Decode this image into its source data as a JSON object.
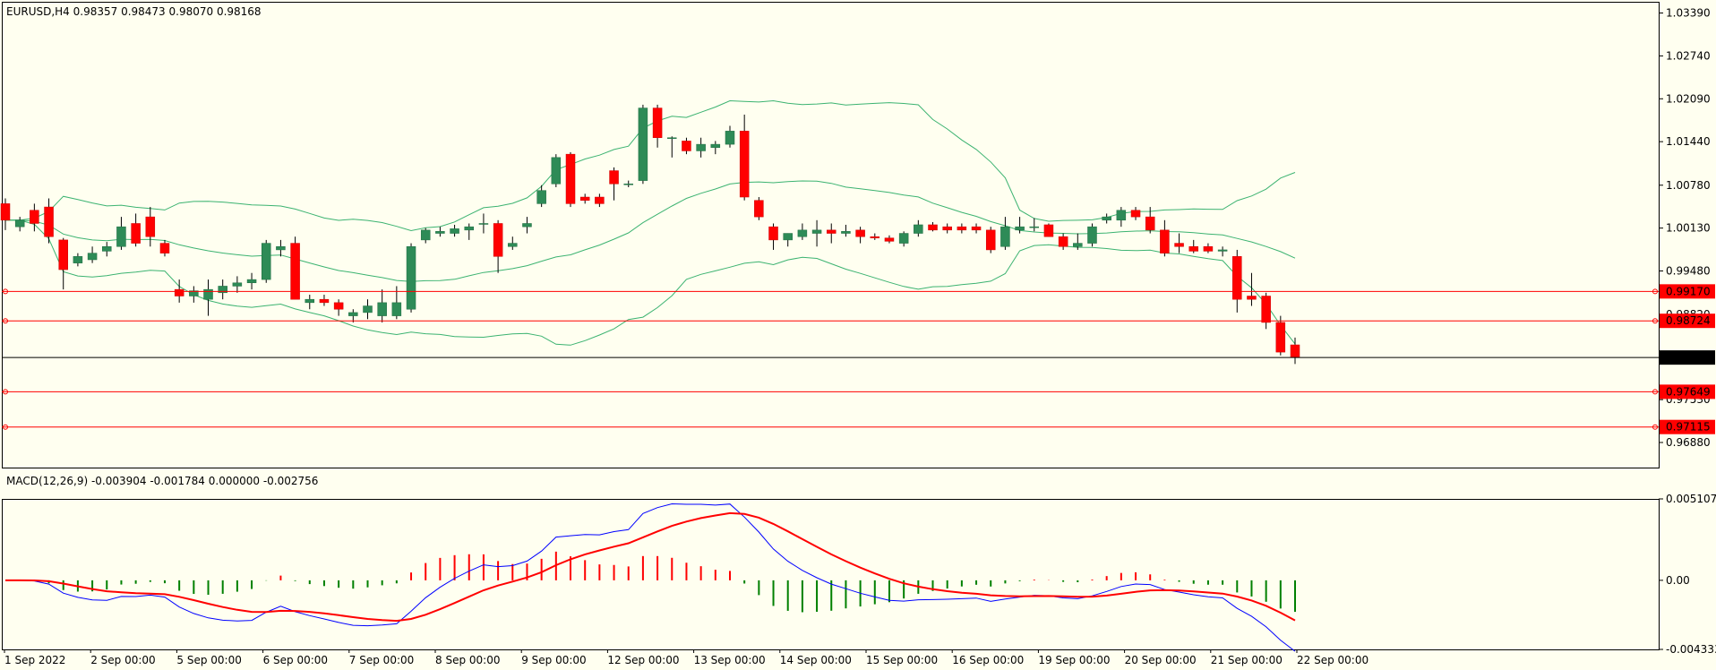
{
  "price_header": "EURUSD,H4  0.98357 0.98473 0.98070 0.98168",
  "macd_header": "MACD(12,26,9) -0.003904 -0.001784 0.000000 -0.002756",
  "colors": {
    "background": "#fffff0",
    "bull": "#2e8b57",
    "bear": "#ff0000",
    "bands": "#3cb371",
    "macd_line": "#0000ff",
    "signal_line": "#ff0000",
    "level_line": "#ff0000",
    "current_price": "#000000"
  },
  "chart_data": [
    {
      "type": "candlestick",
      "symbol": "EURUSD",
      "timeframe": "H4",
      "price_ticks": [
        "1.03390",
        "1.02740",
        "1.02090",
        "1.01440",
        "1.00780",
        "1.00130",
        "0.99480",
        "0.98820",
        "0.97530",
        "0.96880"
      ],
      "ylim": [
        0.965,
        1.0356
      ],
      "x_labels": [
        "1 Sep 2022",
        "2 Sep 00:00",
        "5 Sep 00:00",
        "6 Sep 00:00",
        "7 Sep 00:00",
        "8 Sep 00:00",
        "9 Sep 00:00",
        "12 Sep 00:00",
        "13 Sep 00:00",
        "14 Sep 00:00",
        "15 Sep 00:00",
        "16 Sep 00:00",
        "19 Sep 00:00",
        "20 Sep 00:00",
        "21 Sep 00:00",
        "22 Sep 00:00"
      ],
      "candles_ohlc": [
        [
          1.005,
          1.0058,
          1.001,
          1.0025
        ],
        [
          1.0015,
          1.003,
          1.0008,
          1.0025
        ],
        [
          1.004,
          1.005,
          1.0008,
          1.002
        ],
        [
          1.0045,
          1.0058,
          0.999,
          1.0
        ],
        [
          0.9995,
          0.9998,
          0.992,
          0.995
        ],
        [
          0.996,
          0.9975,
          0.9955,
          0.997
        ],
        [
          0.9965,
          0.9985,
          0.996,
          0.9975
        ],
        [
          0.9978,
          0.9992,
          0.997,
          0.9985
        ],
        [
          0.9985,
          1.003,
          0.998,
          1.0015
        ],
        [
          1.002,
          1.0035,
          0.9985,
          0.999
        ],
        [
          1.003,
          1.0045,
          0.9985,
          1.0
        ],
        [
          0.999,
          0.9995,
          0.997,
          0.9975
        ],
        [
          0.992,
          0.9935,
          0.99,
          0.991
        ],
        [
          0.991,
          0.9925,
          0.99,
          0.9918
        ],
        [
          0.9905,
          0.9935,
          0.988,
          0.992
        ],
        [
          0.9915,
          0.9935,
          0.9905,
          0.9925
        ],
        [
          0.9925,
          0.994,
          0.9915,
          0.993
        ],
        [
          0.993,
          0.9945,
          0.992,
          0.9935
        ],
        [
          0.9935,
          0.9995,
          0.993,
          0.999
        ],
        [
          0.998,
          0.9995,
          0.997,
          0.9985
        ],
        [
          0.999,
          1.0,
          0.9905,
          0.9905
        ],
        [
          0.99,
          0.9912,
          0.989,
          0.9905
        ],
        [
          0.9905,
          0.9912,
          0.9895,
          0.99
        ],
        [
          0.99,
          0.9905,
          0.988,
          0.989
        ],
        [
          0.988,
          0.989,
          0.987,
          0.9885
        ],
        [
          0.9885,
          0.9905,
          0.9875,
          0.9895
        ],
        [
          0.988,
          0.992,
          0.987,
          0.99
        ],
        [
          0.988,
          0.9925,
          0.9875,
          0.99
        ],
        [
          0.989,
          0.999,
          0.9885,
          0.9985
        ],
        [
          0.9995,
          1.0013,
          0.999,
          1.001
        ],
        [
          1.0005,
          1.0015,
          1.0,
          1.0008
        ],
        [
          1.0005,
          1.0018,
          1.0,
          1.0012
        ],
        [
          1.001,
          1.002,
          0.9995,
          1.0015
        ],
        [
          1.002,
          1.0035,
          1.0005,
          1.002
        ],
        [
          1.002,
          1.0025,
          0.9945,
          0.997
        ],
        [
          0.9985,
          1.0,
          0.998,
          0.999
        ],
        [
          1.0015,
          1.003,
          1.0005,
          1.002
        ],
        [
          1.005,
          1.0078,
          1.0045,
          1.007
        ],
        [
          1.008,
          1.0125,
          1.0075,
          1.012
        ],
        [
          1.0125,
          1.0128,
          1.0045,
          1.005
        ],
        [
          1.006,
          1.0065,
          1.005,
          1.0055
        ],
        [
          1.006,
          1.0065,
          1.0045,
          1.005
        ],
        [
          1.01,
          1.0105,
          1.0055,
          1.008
        ],
        [
          1.008,
          1.0085,
          1.0075,
          1.008
        ],
        [
          1.0085,
          1.02,
          1.008,
          1.0195
        ],
        [
          1.0195,
          1.02,
          1.0135,
          1.015
        ],
        [
          1.015,
          1.0152,
          1.012,
          1.015
        ],
        [
          1.0145,
          1.015,
          1.0125,
          1.013
        ],
        [
          1.013,
          1.015,
          1.012,
          1.014
        ],
        [
          1.0135,
          1.0145,
          1.0125,
          1.014
        ],
        [
          1.014,
          1.0168,
          1.0135,
          1.016
        ],
        [
          1.016,
          1.0185,
          1.0055,
          1.006
        ],
        [
          1.0055,
          1.006,
          1.0025,
          1.003
        ],
        [
          1.0015,
          1.002,
          0.998,
          0.9995
        ],
        [
          0.9995,
          1.0005,
          0.9985,
          1.0005
        ],
        [
          1.0,
          1.002,
          0.9995,
          1.001
        ],
        [
          1.0005,
          1.0025,
          0.9985,
          1.001
        ],
        [
          1.001,
          1.002,
          0.999,
          1.0005
        ],
        [
          1.0005,
          1.0018,
          1.0,
          1.0008
        ],
        [
          1.001,
          1.0015,
          0.999,
          1.0
        ],
        [
          1.0,
          1.0005,
          0.9995,
          0.9998
        ],
        [
          0.9998,
          1.0002,
          0.999,
          0.9993
        ],
        [
          0.999,
          1.0008,
          0.9985,
          1.0005
        ],
        [
          1.0005,
          1.0025,
          1.0,
          1.0018
        ],
        [
          1.0018,
          1.0022,
          1.0008,
          1.001
        ],
        [
          1.0015,
          1.002,
          1.0005,
          1.001
        ],
        [
          1.0015,
          1.002,
          1.0005,
          1.001
        ],
        [
          1.0015,
          1.002,
          1.0005,
          1.001
        ],
        [
          1.001,
          1.0015,
          0.9975,
          0.998
        ],
        [
          0.9985,
          1.003,
          0.998,
          1.0015
        ],
        [
          1.001,
          1.003,
          1.0005,
          1.0015
        ],
        [
          1.0015,
          1.0028,
          1.0008,
          1.0015
        ],
        [
          1.0018,
          1.002,
          1.0,
          1.0
        ],
        [
          1.0,
          1.0005,
          0.998,
          0.9985
        ],
        [
          0.9985,
          1.0005,
          0.998,
          0.999
        ],
        [
          0.999,
          1.002,
          0.9985,
          1.0015
        ],
        [
          1.0025,
          1.0035,
          1.002,
          1.003
        ],
        [
          1.0025,
          1.0045,
          1.0015,
          1.004
        ],
        [
          1.004,
          1.0045,
          1.0025,
          1.003
        ],
        [
          1.003,
          1.0045,
          1.0005,
          1.001
        ],
        [
          1.001,
          1.0025,
          0.997,
          0.9975
        ],
        [
          0.999,
          1.0005,
          0.9975,
          0.9985
        ],
        [
          0.9985,
          0.9995,
          0.9975,
          0.9978
        ],
        [
          0.9985,
          0.999,
          0.9975,
          0.9978
        ],
        [
          0.9978,
          0.9985,
          0.997,
          0.998
        ],
        [
          0.997,
          0.998,
          0.9885,
          0.9905
        ],
        [
          0.991,
          0.9945,
          0.9895,
          0.9905
        ],
        [
          0.991,
          0.9915,
          0.986,
          0.987
        ],
        [
          0.987,
          0.988,
          0.982,
          0.9825
        ],
        [
          0.9836,
          0.9847,
          0.9807,
          0.9817
        ]
      ],
      "horizontal_levels": [
        "0.99170",
        "0.98724",
        "0.97649",
        "0.97115"
      ],
      "current_price_label": "0.98168",
      "current_price": 0.98168
    },
    {
      "type": "histogram+line",
      "indicator": "MACD(12,26,9)",
      "y_ticks": [
        "0.005107",
        "0.00",
        "-0.004333"
      ],
      "ylim": [
        -0.004333,
        0.005107
      ]
    }
  ]
}
